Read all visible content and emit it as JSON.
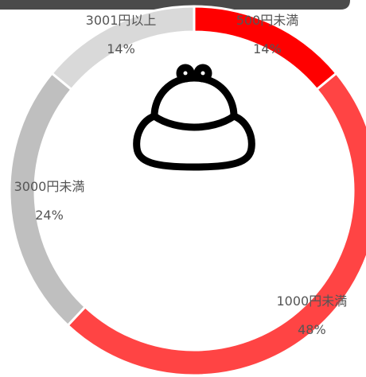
{
  "chart_data": {
    "type": "donut",
    "categories": [
      "500円未満",
      "1000円未満",
      "3000円未満",
      "3001円以上"
    ],
    "values": [
      14,
      48,
      24,
      14
    ],
    "value_labels": [
      "14%",
      "48%",
      "24%",
      "14%"
    ],
    "colors": [
      "#ff0000",
      "#ff4444",
      "#bfbfbf",
      "#d9d9d9"
    ]
  }
}
